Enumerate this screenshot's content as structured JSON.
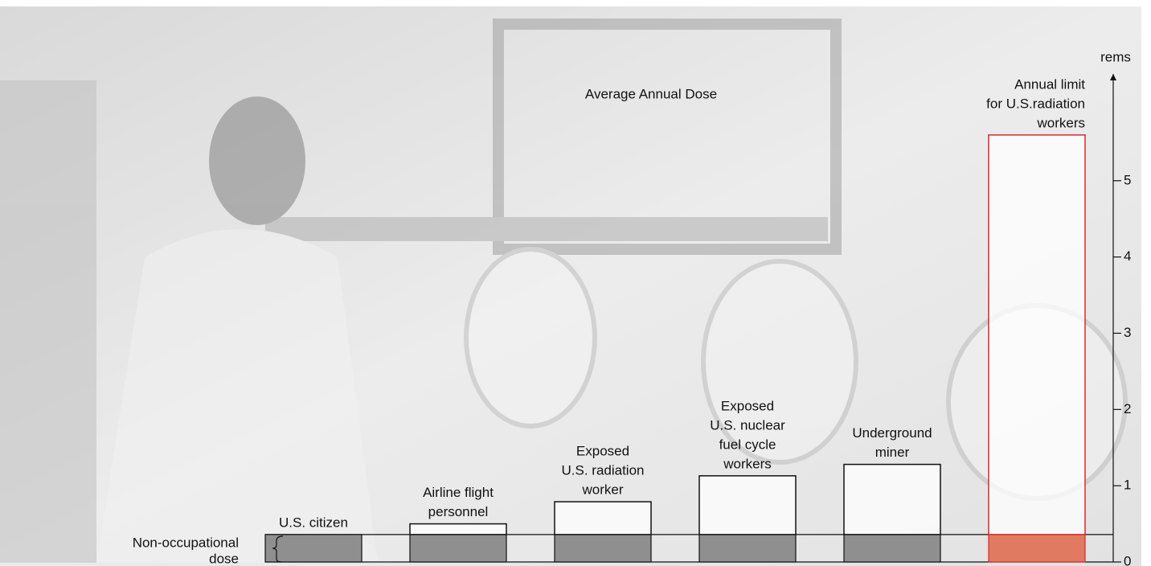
{
  "chart_data": {
    "type": "bar",
    "title": "Average Annual Dose",
    "y_label": "rems",
    "categories": [
      [
        "U.S. citizen"
      ],
      [
        "Airline flight",
        "personnel"
      ],
      [
        "Exposed",
        "U.S. radiation",
        "worker"
      ],
      [
        "Exposed",
        "U.S. nuclear",
        "fuel cycle",
        "workers"
      ],
      [
        "Underground",
        "miner"
      ],
      [
        "Annual limit",
        "for U.S.radiation",
        "workers"
      ]
    ],
    "series": [
      {
        "name": [
          "Non-occupational",
          "dose"
        ],
        "colors": [
          "#8f8f8f",
          "#8f8f8f",
          "#8f8f8f",
          "#8f8f8f",
          "#8f8f8f",
          "#e07a60"
        ],
        "edge_colors": [
          "#111111",
          "#111111",
          "#111111",
          "#111111",
          "#111111",
          "#d62b2b"
        ],
        "values": [
          0.36,
          0.36,
          0.36,
          0.36,
          0.36,
          0.36
        ]
      },
      {
        "colors": [
          "#ffffff",
          "#ffffff",
          "#ffffff",
          "#ffffff",
          "#ffffff",
          "#ffffff"
        ],
        "edge_colors": [
          "#111111",
          "#111111",
          "#111111",
          "#111111",
          "#111111",
          "#d62b2b"
        ],
        "values": [
          0,
          0.14,
          0.43,
          0.77,
          0.92,
          5.24
        ]
      }
    ],
    "ylim": [
      0,
      6.4
    ],
    "yticks": [
      0,
      1,
      2,
      3,
      4,
      5
    ]
  }
}
